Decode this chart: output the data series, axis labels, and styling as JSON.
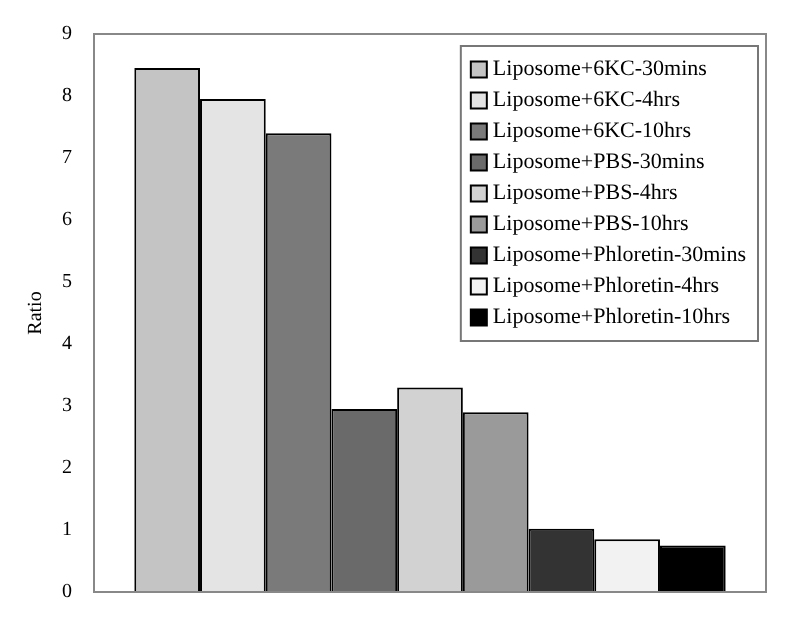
{
  "chart_data": {
    "type": "bar",
    "ylabel": "Ratio",
    "categories": [
      null
    ],
    "ylim": [
      0,
      9
    ],
    "yticks": [
      0,
      1,
      2,
      3,
      4,
      5,
      6,
      7,
      8,
      9
    ],
    "grid": false,
    "legend": "top right",
    "series": [
      {
        "name": "Liposome+6KC-30mins",
        "color": "#c4c4c4",
        "values": [
          8.45
        ]
      },
      {
        "name": "Liposome+6KC-4hrs",
        "color": "#e4e4e4",
        "values": [
          7.95
        ]
      },
      {
        "name": "Liposome+6KC-10hrs",
        "color": "#7a7a7a",
        "values": [
          7.4
        ]
      },
      {
        "name": "Liposome+PBS-30mins",
        "color": "#6a6a6a",
        "values": [
          2.95
        ]
      },
      {
        "name": "Liposome+PBS-4hrs",
        "color": "#d2d2d2",
        "values": [
          3.3
        ]
      },
      {
        "name": "Liposome+PBS-10hrs",
        "color": "#9a9a9a",
        "values": [
          2.9
        ]
      },
      {
        "name": "Liposome+Phloretin-30mins",
        "color": "#333333",
        "values": [
          1.02
        ]
      },
      {
        "name": "Liposome+Phloretin-4hrs",
        "color": "#f2f2f2",
        "values": [
          0.85
        ]
      },
      {
        "name": "Liposome+Phloretin-10hrs",
        "color": "#000000",
        "values": [
          0.75
        ]
      }
    ]
  }
}
